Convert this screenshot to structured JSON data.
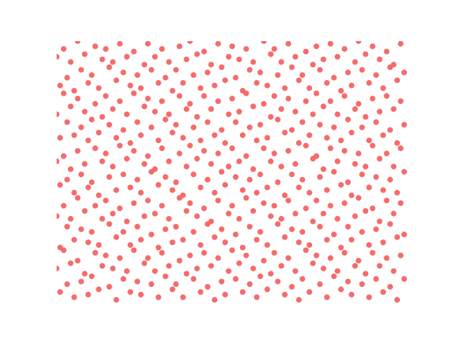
{
  "chart_data": {
    "type": "scatter",
    "color": "#f46464",
    "axis": false,
    "xlim": [
      0,
      1
    ],
    "ylim": [
      0,
      1
    ],
    "x": [
      0.01,
      0.05,
      0.09,
      0.12,
      0.17,
      0.21,
      0.24,
      0.29,
      0.33,
      0.36,
      0.41,
      0.45,
      0.48,
      0.53,
      0.57,
      0.6,
      0.65,
      0.69,
      0.72,
      0.77,
      0.81,
      0.84,
      0.89,
      0.93,
      0.97,
      0.03,
      0.07,
      0.1,
      0.15,
      0.19,
      0.23,
      0.27,
      0.31,
      0.34,
      0.39,
      0.43,
      0.47,
      0.51,
      0.55,
      0.58,
      0.63,
      0.67,
      0.7,
      0.75,
      0.79,
      0.83,
      0.87,
      0.91,
      0.95,
      0.99,
      0.0,
      0.04,
      0.08,
      0.13,
      0.16,
      0.2,
      0.25,
      0.28,
      0.32,
      0.37,
      0.4,
      0.44,
      0.49,
      0.52,
      0.56,
      0.61,
      0.64,
      0.68,
      0.73,
      0.76,
      0.8,
      0.85,
      0.88,
      0.92,
      0.96,
      0.02,
      0.06,
      0.11,
      0.14,
      0.18,
      0.22,
      0.26,
      0.3,
      0.35,
      0.38,
      0.42,
      0.46,
      0.5,
      0.54,
      0.59,
      0.62,
      0.66,
      0.71,
      0.74,
      0.78,
      0.82,
      0.86,
      0.9,
      0.94,
      0.98,
      0.01,
      0.05,
      0.09,
      0.12,
      0.17,
      0.21,
      0.24,
      0.29,
      0.33,
      0.36,
      0.41,
      0.45,
      0.48,
      0.53,
      0.57,
      0.6,
      0.65,
      0.69,
      0.72,
      0.77,
      0.81,
      0.84,
      0.89,
      0.93,
      0.97,
      0.03,
      0.07,
      0.1,
      0.15,
      0.19,
      0.23,
      0.27,
      0.31,
      0.34,
      0.39,
      0.43,
      0.47,
      0.51,
      0.55,
      0.58,
      0.63,
      0.67,
      0.7,
      0.75,
      0.79,
      0.83,
      0.87,
      0.91,
      0.95,
      0.99,
      0.0,
      0.04,
      0.08,
      0.13,
      0.16,
      0.2,
      0.25,
      0.28,
      0.32,
      0.37,
      0.4,
      0.44,
      0.49,
      0.52,
      0.56,
      0.61,
      0.64,
      0.68,
      0.73,
      0.76,
      0.8,
      0.85,
      0.88,
      0.92,
      0.96,
      0.02,
      0.06,
      0.11,
      0.14,
      0.18,
      0.22,
      0.26,
      0.3,
      0.35,
      0.38,
      0.42,
      0.46,
      0.5,
      0.54,
      0.59,
      0.62,
      0.66,
      0.71,
      0.74,
      0.78,
      0.82,
      0.86,
      0.9,
      0.94,
      0.98,
      0.01,
      0.05,
      0.09,
      0.12,
      0.17,
      0.21,
      0.24,
      0.29,
      0.33,
      0.36,
      0.41,
      0.45,
      0.48,
      0.53,
      0.57,
      0.6,
      0.65,
      0.69,
      0.72,
      0.77,
      0.81,
      0.84,
      0.89,
      0.93,
      0.97,
      0.03,
      0.07,
      0.1,
      0.15,
      0.19,
      0.23,
      0.27,
      0.31,
      0.34,
      0.39,
      0.43,
      0.47,
      0.51,
      0.55,
      0.58,
      0.63,
      0.67,
      0.7,
      0.75,
      0.79,
      0.83,
      0.87,
      0.91,
      0.95,
      0.99,
      0.0,
      0.04,
      0.08,
      0.13,
      0.16,
      0.2,
      0.25,
      0.28,
      0.32,
      0.37,
      0.4,
      0.44,
      0.49,
      0.52,
      0.56,
      0.61,
      0.64,
      0.68,
      0.73,
      0.76,
      0.8,
      0.85,
      0.88,
      0.92,
      0.96,
      0.02,
      0.06,
      0.11,
      0.14,
      0.18,
      0.22,
      0.26,
      0.3,
      0.35,
      0.38,
      0.42,
      0.46,
      0.5,
      0.54,
      0.59,
      0.62,
      0.66,
      0.71,
      0.74,
      0.78,
      0.82,
      0.86,
      0.9,
      0.94,
      0.98,
      0.01,
      0.05,
      0.09,
      0.12,
      0.17,
      0.21,
      0.24,
      0.29,
      0.33,
      0.36,
      0.41,
      0.45,
      0.48,
      0.53,
      0.57,
      0.6,
      0.65,
      0.69,
      0.72,
      0.77,
      0.81,
      0.84,
      0.89,
      0.93,
      0.97,
      0.03,
      0.07,
      0.1,
      0.15,
      0.19,
      0.23,
      0.27,
      0.31,
      0.34,
      0.39,
      0.43,
      0.47,
      0.51,
      0.55,
      0.58,
      0.63,
      0.67,
      0.7,
      0.75,
      0.79,
      0.83,
      0.87,
      0.91,
      0.95,
      0.99,
      0.0,
      0.04,
      0.08,
      0.13,
      0.16,
      0.2,
      0.25,
      0.28,
      0.32,
      0.37,
      0.4,
      0.44,
      0.49,
      0.52,
      0.56,
      0.61,
      0.64,
      0.68,
      0.73,
      0.76,
      0.8,
      0.85,
      0.88,
      0.92,
      0.96,
      0.02,
      0.06,
      0.11,
      0.14,
      0.18,
      0.22,
      0.26,
      0.3,
      0.35,
      0.38,
      0.42,
      0.46,
      0.5,
      0.54,
      0.59,
      0.62,
      0.66,
      0.71,
      0.74,
      0.78,
      0.82,
      0.86,
      0.9,
      0.94,
      0.98,
      0.01,
      0.05,
      0.09,
      0.12,
      0.17,
      0.21,
      0.24,
      0.29,
      0.33,
      0.36,
      0.41,
      0.45,
      0.48,
      0.53,
      0.57,
      0.6,
      0.65,
      0.69,
      0.72,
      0.77,
      0.81,
      0.84,
      0.89,
      0.93,
      0.97,
      0.03,
      0.07,
      0.1,
      0.15,
      0.19,
      0.23,
      0.27,
      0.31,
      0.34,
      0.39,
      0.43,
      0.47,
      0.51,
      0.55,
      0.58,
      0.63,
      0.67,
      0.7,
      0.75,
      0.79,
      0.83,
      0.87,
      0.91,
      0.95,
      0.99,
      0.0,
      0.04,
      0.08,
      0.13,
      0.16,
      0.2,
      0.25,
      0.28,
      0.32,
      0.37,
      0.4,
      0.44,
      0.49,
      0.52,
      0.56,
      0.61,
      0.64,
      0.68,
      0.73,
      0.76,
      0.8,
      0.85,
      0.88,
      0.92,
      0.96,
      0.02,
      0.06,
      0.11,
      0.14,
      0.18,
      0.22,
      0.26,
      0.3,
      0.35,
      0.38,
      0.42,
      0.46,
      0.5,
      0.54,
      0.59,
      0.62,
      0.66,
      0.71,
      0.74,
      0.78,
      0.82,
      0.86,
      0.9,
      0.94,
      0.98
    ],
    "y": [
      0.04,
      0.02,
      0.03,
      0.05,
      0.01,
      0.04,
      0.03,
      0.02,
      0.05,
      0.02,
      0.04,
      0.01,
      0.03,
      0.04,
      0.02,
      0.05,
      0.03,
      0.01,
      0.04,
      0.02,
      0.05,
      0.03,
      0.02,
      0.04,
      0.01,
      0.07,
      0.08,
      0.1,
      0.06,
      0.09,
      0.08,
      0.07,
      0.1,
      0.07,
      0.09,
      0.06,
      0.08,
      0.09,
      0.07,
      0.1,
      0.08,
      0.06,
      0.09,
      0.07,
      0.1,
      0.08,
      0.07,
      0.09,
      0.06,
      0.09,
      0.13,
      0.15,
      0.11,
      0.14,
      0.13,
      0.12,
      0.15,
      0.12,
      0.14,
      0.11,
      0.13,
      0.14,
      0.12,
      0.15,
      0.13,
      0.11,
      0.14,
      0.12,
      0.15,
      0.13,
      0.12,
      0.14,
      0.11,
      0.14,
      0.12,
      0.2,
      0.16,
      0.19,
      0.18,
      0.17,
      0.2,
      0.17,
      0.19,
      0.16,
      0.18,
      0.19,
      0.17,
      0.2,
      0.18,
      0.16,
      0.19,
      0.17,
      0.2,
      0.18,
      0.17,
      0.19,
      0.16,
      0.19,
      0.17,
      0.18,
      0.21,
      0.24,
      0.23,
      0.22,
      0.25,
      0.22,
      0.24,
      0.21,
      0.23,
      0.24,
      0.22,
      0.25,
      0.23,
      0.21,
      0.24,
      0.22,
      0.25,
      0.23,
      0.22,
      0.24,
      0.21,
      0.24,
      0.22,
      0.23,
      0.25,
      0.29,
      0.28,
      0.27,
      0.3,
      0.27,
      0.29,
      0.26,
      0.28,
      0.29,
      0.27,
      0.3,
      0.28,
      0.26,
      0.29,
      0.27,
      0.3,
      0.28,
      0.27,
      0.29,
      0.26,
      0.29,
      0.27,
      0.28,
      0.3,
      0.26,
      0.33,
      0.32,
      0.35,
      0.32,
      0.34,
      0.31,
      0.33,
      0.34,
      0.32,
      0.35,
      0.33,
      0.31,
      0.34,
      0.32,
      0.35,
      0.33,
      0.32,
      0.34,
      0.31,
      0.34,
      0.32,
      0.33,
      0.35,
      0.31,
      0.34,
      0.37,
      0.4,
      0.37,
      0.39,
      0.36,
      0.38,
      0.39,
      0.37,
      0.4,
      0.38,
      0.36,
      0.39,
      0.37,
      0.4,
      0.38,
      0.37,
      0.39,
      0.36,
      0.39,
      0.37,
      0.38,
      0.4,
      0.36,
      0.39,
      0.38,
      0.45,
      0.42,
      0.44,
      0.41,
      0.43,
      0.44,
      0.42,
      0.45,
      0.43,
      0.41,
      0.44,
      0.42,
      0.45,
      0.43,
      0.42,
      0.44,
      0.41,
      0.44,
      0.42,
      0.43,
      0.45,
      0.41,
      0.44,
      0.43,
      0.42,
      0.47,
      0.49,
      0.46,
      0.48,
      0.49,
      0.47,
      0.5,
      0.48,
      0.46,
      0.49,
      0.47,
      0.5,
      0.48,
      0.47,
      0.49,
      0.46,
      0.49,
      0.47,
      0.48,
      0.5,
      0.46,
      0.49,
      0.48,
      0.47,
      0.5,
      0.54,
      0.51,
      0.53,
      0.54,
      0.52,
      0.55,
      0.53,
      0.51,
      0.54,
      0.52,
      0.55,
      0.53,
      0.52,
      0.54,
      0.51,
      0.54,
      0.52,
      0.53,
      0.55,
      0.51,
      0.54,
      0.53,
      0.52,
      0.55,
      0.52,
      0.56,
      0.58,
      0.59,
      0.57,
      0.6,
      0.58,
      0.56,
      0.59,
      0.57,
      0.6,
      0.58,
      0.57,
      0.59,
      0.56,
      0.59,
      0.57,
      0.58,
      0.6,
      0.56,
      0.59,
      0.58,
      0.57,
      0.6,
      0.57,
      0.59,
      0.63,
      0.64,
      0.62,
      0.65,
      0.63,
      0.61,
      0.64,
      0.62,
      0.65,
      0.63,
      0.62,
      0.64,
      0.61,
      0.64,
      0.62,
      0.63,
      0.65,
      0.61,
      0.64,
      0.63,
      0.62,
      0.65,
      0.62,
      0.64,
      0.61,
      0.69,
      0.67,
      0.7,
      0.68,
      0.66,
      0.69,
      0.67,
      0.7,
      0.68,
      0.67,
      0.69,
      0.66,
      0.69,
      0.67,
      0.68,
      0.7,
      0.66,
      0.69,
      0.68,
      0.67,
      0.7,
      0.67,
      0.69,
      0.66,
      0.68,
      0.72,
      0.75,
      0.73,
      0.71,
      0.74,
      0.72,
      0.75,
      0.73,
      0.72,
      0.74,
      0.71,
      0.74,
      0.72,
      0.73,
      0.75,
      0.71,
      0.74,
      0.73,
      0.72,
      0.75,
      0.72,
      0.74,
      0.71,
      0.73,
      0.74,
      0.8,
      0.78,
      0.76,
      0.79,
      0.77,
      0.8,
      0.78,
      0.77,
      0.79,
      0.76,
      0.79,
      0.77,
      0.78,
      0.8,
      0.76,
      0.79,
      0.78,
      0.77,
      0.8,
      0.77,
      0.79,
      0.76,
      0.78,
      0.79,
      0.77,
      0.83,
      0.81,
      0.84,
      0.82,
      0.85,
      0.83,
      0.82,
      0.84,
      0.81,
      0.84,
      0.82,
      0.83,
      0.85,
      0.81,
      0.84,
      0.83,
      0.82,
      0.85,
      0.82,
      0.84,
      0.81,
      0.83,
      0.84,
      0.82,
      0.85,
      0.86,
      0.89,
      0.87,
      0.9,
      0.88,
      0.87,
      0.89,
      0.86,
      0.89,
      0.87,
      0.88,
      0.9,
      0.86,
      0.89,
      0.88,
      0.87,
      0.9,
      0.87,
      0.89,
      0.86,
      0.88,
      0.89,
      0.87,
      0.9,
      0.88,
      0.94,
      0.92,
      0.95,
      0.93,
      0.92,
      0.94,
      0.91,
      0.94,
      0.92,
      0.93,
      0.95,
      0.91,
      0.94,
      0.93,
      0.92,
      0.95,
      0.92,
      0.94,
      0.91,
      0.93,
      0.94,
      0.92,
      0.95,
      0.93,
      0.91,
      0.97,
      1.0,
      0.98,
      0.97,
      0.99,
      0.96,
      0.99,
      0.97,
      0.98,
      1.0,
      0.96,
      0.99,
      0.98,
      0.97,
      1.0,
      0.97,
      0.99,
      0.96,
      0.98,
      0.99,
      0.97,
      1.0,
      0.98,
      0.96,
      0.99
    ]
  }
}
